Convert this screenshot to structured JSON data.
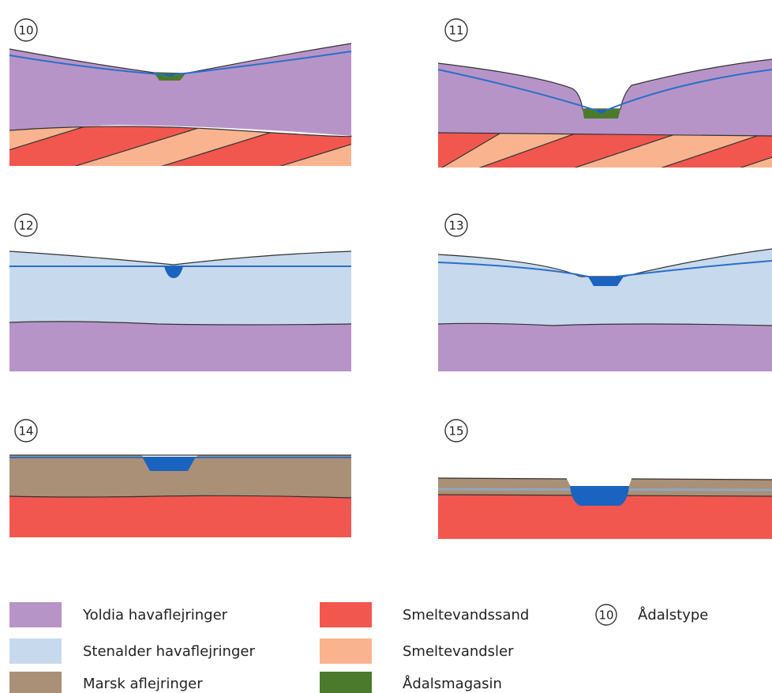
{
  "panels": [
    {
      "label": "10"
    },
    {
      "label": "11"
    },
    {
      "label": "12"
    },
    {
      "label": "13"
    },
    {
      "label": "14"
    },
    {
      "label": "15"
    }
  ],
  "legend": [
    {
      "label": "Yoldia havaflejringer"
    },
    {
      "label": "Stenalder havaflejringer"
    },
    {
      "label": "Marsk aflejringer"
    },
    {
      "label": "Smeltevandssand"
    },
    {
      "label": "Smeltevandsler"
    },
    {
      "label": "Ådalsmagasin"
    }
  ],
  "key": {
    "symbol": "10",
    "label": "Ådalstype"
  }
}
